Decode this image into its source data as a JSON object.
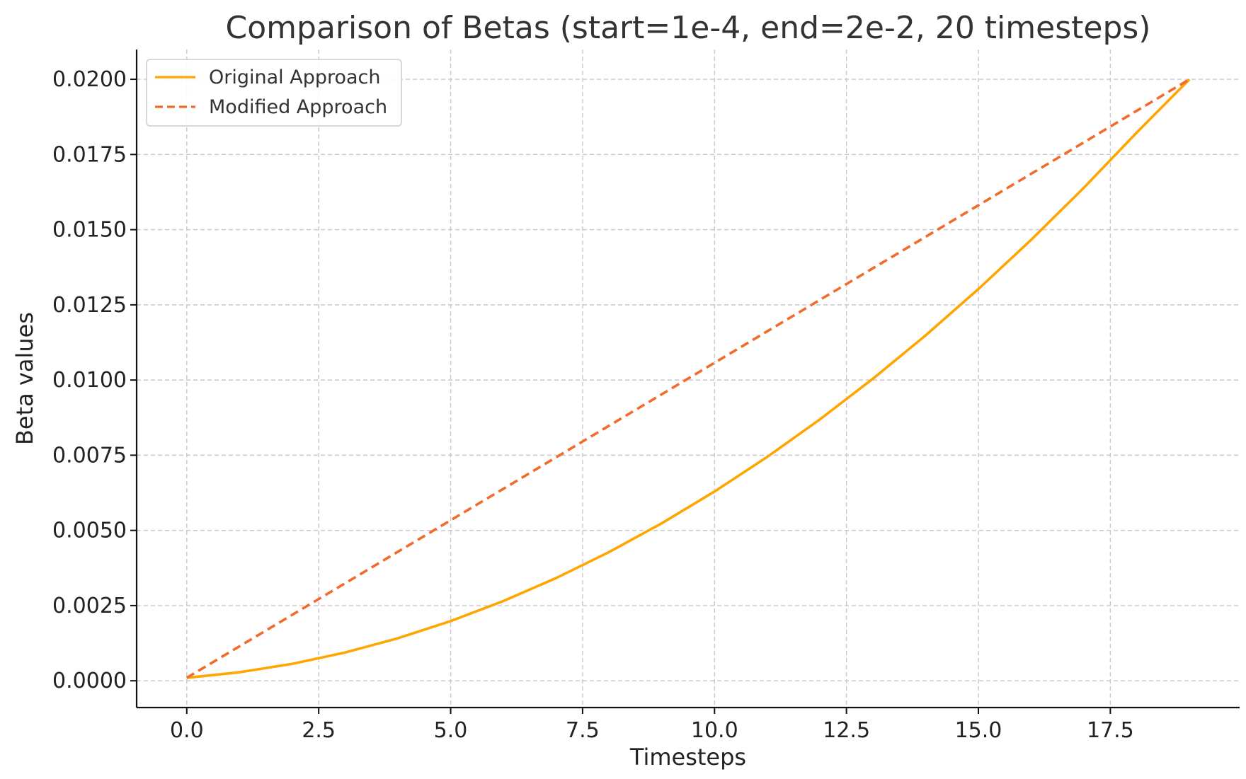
{
  "chart_data": {
    "type": "line",
    "title": "Comparison of Betas (start=1e-4, end=2e-2, 20 timesteps)",
    "xlabel": "Timesteps",
    "ylabel": "Beta values",
    "xlim": [
      -0.95,
      19.95
    ],
    "ylim": [
      -0.00089,
      0.02099
    ],
    "xticks": [
      0.0,
      2.5,
      5.0,
      7.5,
      10.0,
      12.5,
      15.0,
      17.5
    ],
    "xtick_labels": [
      "0.0",
      "2.5",
      "5.0",
      "7.5",
      "10.0",
      "12.5",
      "15.0",
      "17.5"
    ],
    "yticks": [
      0.0,
      0.0025,
      0.005,
      0.0075,
      0.01,
      0.0125,
      0.015,
      0.0175,
      0.02
    ],
    "ytick_labels": [
      "0.0000",
      "0.0025",
      "0.0050",
      "0.0075",
      "0.0100",
      "0.0125",
      "0.0150",
      "0.0175",
      "0.0200"
    ],
    "grid": true,
    "legend_position": "top-left",
    "x": [
      0,
      1,
      2,
      3,
      4,
      5,
      6,
      7,
      8,
      9,
      10,
      11,
      12,
      13,
      14,
      15,
      16,
      17,
      18,
      19
    ],
    "series": [
      {
        "name": "Original Approach",
        "color": "#FFA500",
        "style": "solid",
        "values": [
          0.0001,
          0.0002829,
          0.0005629,
          0.0009397,
          0.0014135,
          0.0019843,
          0.0026521,
          0.0034168,
          0.0042785,
          0.0052372,
          0.0062928,
          0.0074454,
          0.008695,
          0.0100415,
          0.011485,
          0.0130255,
          0.014663,
          0.0163975,
          0.0182289,
          0.02
        ]
      },
      {
        "name": "Modified Approach",
        "color": "#F26B2C",
        "style": "dashed",
        "values": [
          0.0001,
          0.0011474,
          0.0021947,
          0.0032421,
          0.0042895,
          0.0053368,
          0.0063842,
          0.0074316,
          0.0084789,
          0.0095263,
          0.0105737,
          0.0116211,
          0.0126684,
          0.0137158,
          0.0147632,
          0.0158105,
          0.0168579,
          0.0179053,
          0.0189526,
          0.02
        ]
      }
    ]
  }
}
